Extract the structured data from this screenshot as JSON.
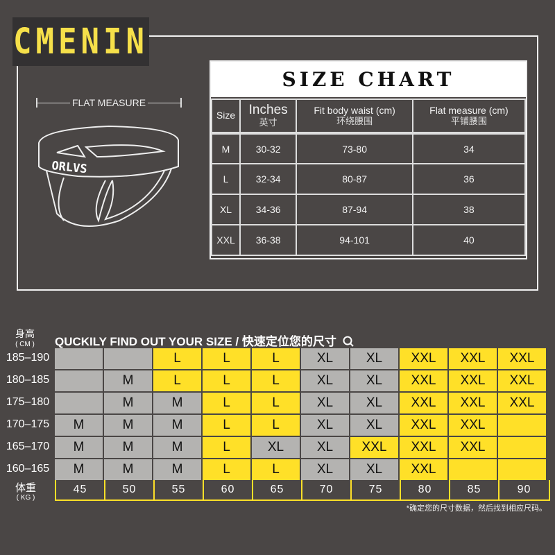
{
  "logo": {
    "text": "CMENIN"
  },
  "illustration": {
    "flat_label": "FLAT  MEASURE",
    "brand_on_waistband": "ORLVS"
  },
  "size_chart": {
    "title": "SIZE CHART",
    "headers": [
      {
        "en": "Size",
        "zh": ""
      },
      {
        "en": "Inches",
        "zh": "英寸"
      },
      {
        "en": "Fit body waist (cm)",
        "zh": "环绕腰围"
      },
      {
        "en": "Flat measure (cm)",
        "zh": "平铺腰围"
      }
    ],
    "rows": [
      [
        "M",
        "30-32",
        "73-80",
        "34"
      ],
      [
        "L",
        "32-34",
        "80-87",
        "36"
      ],
      [
        "XL",
        "34-36",
        "87-94",
        "38"
      ],
      [
        "XXL",
        "36-38",
        "94-101",
        "40"
      ]
    ]
  },
  "finder": {
    "height_label": "身高",
    "height_unit": "( CM )",
    "title": "QUCKILY FIND OUT YOUR SIZE / 快速定位您的尺寸",
    "search_icon": "search-icon",
    "weight_label": "体重",
    "weight_unit": "( KG )",
    "weights": [
      "45",
      "50",
      "55",
      "60",
      "65",
      "70",
      "75",
      "80",
      "85",
      "90"
    ],
    "colors": {
      "grey": "#b4b3b1",
      "yellow": "#ffe028"
    },
    "rows": [
      {
        "height": "185–190",
        "cells": [
          [
            "",
            "g"
          ],
          [
            "",
            "g"
          ],
          [
            "L",
            "y"
          ],
          [
            "L",
            "y"
          ],
          [
            "L",
            "y"
          ],
          [
            "XL",
            "g"
          ],
          [
            "XL",
            "g"
          ],
          [
            "XXL",
            "y"
          ],
          [
            "XXL",
            "y"
          ],
          [
            "XXL",
            "y"
          ]
        ]
      },
      {
        "height": "180–185",
        "cells": [
          [
            "",
            "g"
          ],
          [
            "M",
            "g"
          ],
          [
            "L",
            "y"
          ],
          [
            "L",
            "y"
          ],
          [
            "L",
            "y"
          ],
          [
            "XL",
            "g"
          ],
          [
            "XL",
            "g"
          ],
          [
            "XXL",
            "y"
          ],
          [
            "XXL",
            "y"
          ],
          [
            "XXL",
            "y"
          ]
        ]
      },
      {
        "height": "175–180",
        "cells": [
          [
            "",
            "g"
          ],
          [
            "M",
            "g"
          ],
          [
            "M",
            "g"
          ],
          [
            "L",
            "y"
          ],
          [
            "L",
            "y"
          ],
          [
            "XL",
            "g"
          ],
          [
            "XL",
            "g"
          ],
          [
            "XXL",
            "y"
          ],
          [
            "XXL",
            "y"
          ],
          [
            "XXL",
            "y"
          ]
        ]
      },
      {
        "height": "170–175",
        "cells": [
          [
            "M",
            "g"
          ],
          [
            "M",
            "g"
          ],
          [
            "M",
            "g"
          ],
          [
            "L",
            "y"
          ],
          [
            "L",
            "y"
          ],
          [
            "XL",
            "g"
          ],
          [
            "XL",
            "g"
          ],
          [
            "XXL",
            "y"
          ],
          [
            "XXL",
            "y"
          ],
          [
            "",
            "y"
          ]
        ]
      },
      {
        "height": "165–170",
        "cells": [
          [
            "M",
            "g"
          ],
          [
            "M",
            "g"
          ],
          [
            "M",
            "g"
          ],
          [
            "L",
            "y"
          ],
          [
            "XL",
            "g"
          ],
          [
            "XL",
            "g"
          ],
          [
            "XXL",
            "y"
          ],
          [
            "XXL",
            "y"
          ],
          [
            "XXL",
            "y"
          ],
          [
            "",
            "y"
          ]
        ]
      },
      {
        "height": "160–165",
        "cells": [
          [
            "M",
            "g"
          ],
          [
            "M",
            "g"
          ],
          [
            "M",
            "g"
          ],
          [
            "L",
            "y"
          ],
          [
            "L",
            "y"
          ],
          [
            "XL",
            "g"
          ],
          [
            "XL",
            "g"
          ],
          [
            "XXL",
            "y"
          ],
          [
            "",
            "y"
          ],
          [
            "",
            "y"
          ]
        ]
      }
    ],
    "note": "*确定您的尺寸数据，然后找到相应尺码。"
  }
}
